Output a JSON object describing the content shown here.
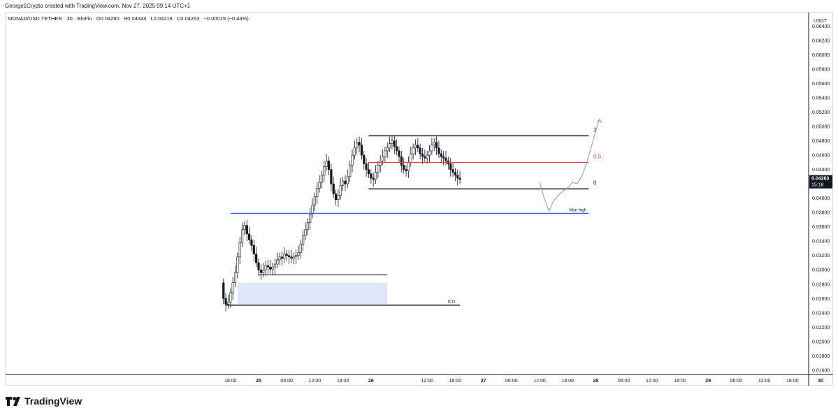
{
  "credit": "George1Crypto created with TradingView.com, Nov 27, 2025 09:14 UTC+1",
  "legend": {
    "symbol": "MONAD/USD TETHER · 30 · BloFin",
    "open": "O0.04280",
    "high": "H0.04344",
    "low": "L0.04218",
    "close": "C0.04263",
    "change": "−0.00019 (−0.44%)"
  },
  "brand": "TradingView",
  "colors": {
    "up": "#131722",
    "down": "#131722",
    "level_red": "#f23645",
    "level_blue": "#2962ff",
    "zone": "#dfe8fb"
  },
  "chart_data": {
    "type": "candlestick",
    "currency_label": "USDT",
    "ylim": [
      0.0155,
      0.0657
    ],
    "y_ticks": [
      "0.06400",
      "0.06200",
      "0.06000",
      "0.05800",
      "0.05600",
      "0.05400",
      "0.05200",
      "0.05000",
      "0.04800",
      "0.04600",
      "0.04400",
      "0.04200",
      "0.04000",
      "0.03800",
      "0.03600",
      "0.03400",
      "0.03200",
      "0.03000",
      "0.02800",
      "0.02600",
      "0.02400",
      "0.02200",
      "0.02000",
      "0.01800",
      "0.01600"
    ],
    "x_ticks": [
      {
        "label": "18:00",
        "t": -6,
        "bold": false
      },
      {
        "label": "25",
        "t": 0,
        "bold": true
      },
      {
        "label": "06:00",
        "t": 6,
        "bold": false
      },
      {
        "label": "12:00",
        "t": 12,
        "bold": false
      },
      {
        "label": "18:00",
        "t": 18,
        "bold": false
      },
      {
        "label": "26",
        "t": 24,
        "bold": true
      },
      {
        "label": "12:00",
        "t": 36,
        "bold": false
      },
      {
        "label": "18:00",
        "t": 42,
        "bold": false
      },
      {
        "label": "27",
        "t": 48,
        "bold": true
      },
      {
        "label": "06:00",
        "t": 54,
        "bold": false
      },
      {
        "label": "12:00",
        "t": 60,
        "bold": false
      },
      {
        "label": "18:00",
        "t": 66,
        "bold": false
      },
      {
        "label": "28",
        "t": 72,
        "bold": true
      },
      {
        "label": "06:00",
        "t": 78,
        "bold": false
      },
      {
        "label": "12:00",
        "t": 84,
        "bold": false
      },
      {
        "label": "18:00",
        "t": 90,
        "bold": false
      },
      {
        "label": "29",
        "t": 96,
        "bold": true
      },
      {
        "label": "06:00",
        "t": 102,
        "bold": false
      },
      {
        "label": "12:00",
        "t": 108,
        "bold": false
      },
      {
        "label": "18:00",
        "t": 114,
        "bold": false
      },
      {
        "label": "30",
        "t": 120,
        "bold": true
      }
    ],
    "x_axis_note": "t is hours from Nov 25 00:00",
    "price_label": {
      "value": "0.04263",
      "countdown": "15:18"
    },
    "candles_30m": {
      "start_t": -7.5,
      "interval_hours": 0.5,
      "closes": [
        0.026,
        0.0252,
        0.0255,
        0.0268,
        0.0282,
        0.0296,
        0.0318,
        0.0338,
        0.0356,
        0.0362,
        0.035,
        0.0342,
        0.0334,
        0.0322,
        0.031,
        0.03,
        0.0296,
        0.03,
        0.0306,
        0.0304,
        0.0301,
        0.0304,
        0.0308,
        0.0314,
        0.0318,
        0.0316,
        0.0322,
        0.032,
        0.0318,
        0.0316,
        0.0318,
        0.032,
        0.0324,
        0.0336,
        0.0348,
        0.0356,
        0.0366,
        0.0378,
        0.039,
        0.0402,
        0.0414,
        0.0422,
        0.0432,
        0.0444,
        0.0452,
        0.044,
        0.042,
        0.0406,
        0.0398,
        0.0404,
        0.0418,
        0.0424,
        0.042,
        0.043,
        0.0446,
        0.046,
        0.047,
        0.0478,
        0.0474,
        0.046,
        0.0448,
        0.044,
        0.0434,
        0.0428,
        0.0426,
        0.0436,
        0.0446,
        0.0452,
        0.0458,
        0.0466,
        0.047,
        0.0476,
        0.048,
        0.0472,
        0.0466,
        0.0458,
        0.0446,
        0.044,
        0.0438,
        0.045,
        0.0462,
        0.047,
        0.0474,
        0.047,
        0.0462,
        0.0458,
        0.0456,
        0.046,
        0.0466,
        0.0474,
        0.0478,
        0.047,
        0.0462,
        0.0458,
        0.0456,
        0.0452,
        0.0448,
        0.044,
        0.0436,
        0.0432,
        0.0428,
        0.0426
      ],
      "opens_start": 0.0282
    },
    "annotations": {
      "fib_1": {
        "label": "1",
        "price": 0.0487
      },
      "fib_0_5": {
        "label": "0.5",
        "price": 0.04498
      },
      "fib_0": {
        "label": "0",
        "price": 0.0413
      },
      "mon_high": {
        "label": "Mon high",
        "price": 0.03788
      },
      "ico": {
        "label": "ICO",
        "price": 0.02508
      },
      "level_low_range": {
        "price": 0.0293
      },
      "zone": {
        "top": 0.0282,
        "bottom": 0.0252
      },
      "projection": [
        [
          60,
          0.0422
        ],
        [
          61,
          0.04
        ],
        [
          62,
          0.0382
        ],
        [
          63,
          0.0396
        ],
        [
          64,
          0.0404
        ],
        [
          65,
          0.041
        ],
        [
          66,
          0.0414
        ],
        [
          67,
          0.0422
        ],
        [
          68,
          0.042
        ],
        [
          69,
          0.043
        ],
        [
          70,
          0.0448
        ],
        [
          71,
          0.047
        ],
        [
          72,
          0.0494
        ],
        [
          72.8,
          0.051
        ]
      ]
    }
  }
}
